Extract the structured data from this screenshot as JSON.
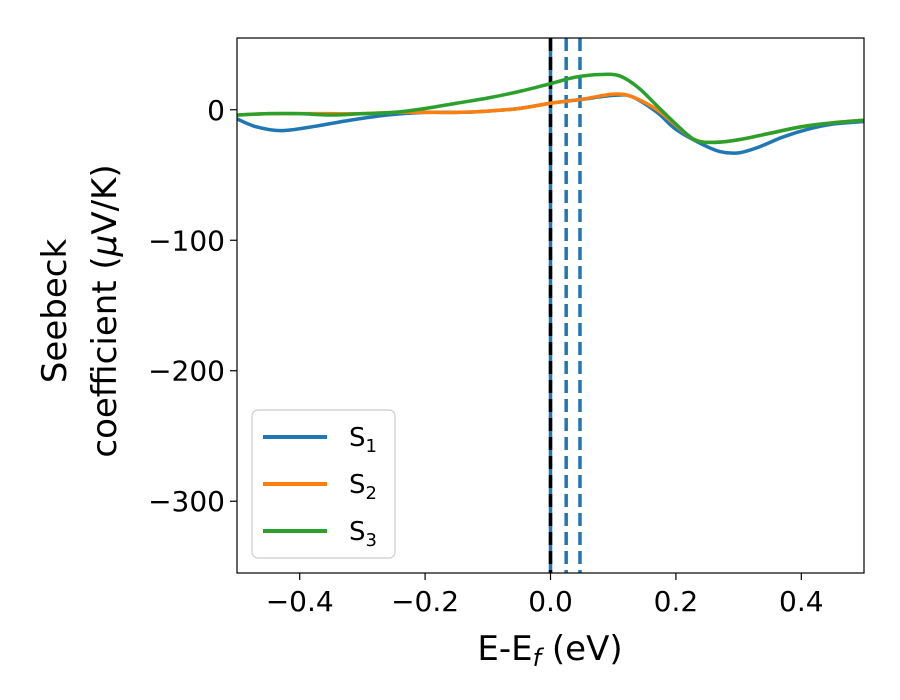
{
  "chart_data": {
    "type": "line",
    "xlabel": {
      "main": "E-E",
      "sub": "f",
      "unit": " (eV)"
    },
    "ylabel": {
      "line1": "Seebeck",
      "line2_main": "coefficient  (",
      "line2_mu": "μ",
      "line2_unit": "V/K)"
    },
    "xlim": [
      -0.5,
      0.5
    ],
    "ylim": [
      -355,
      55
    ],
    "xticks": [
      -0.4,
      -0.2,
      0.0,
      0.2,
      0.4
    ],
    "xtick_labels": [
      "−0.4",
      "−0.2",
      "0.0",
      "0.2",
      "0.4"
    ],
    "yticks": [
      0,
      -100,
      -200,
      -300
    ],
    "ytick_labels": [
      "0",
      "−100",
      "−200",
      "−300"
    ],
    "grid": false,
    "legend_position": "lower-left",
    "series": [
      {
        "name": "S1",
        "label_main": "S",
        "label_sub": "1",
        "color": "#1f77b4",
        "points": [
          [
            -0.5,
            -7
          ],
          [
            -0.47,
            -13
          ],
          [
            -0.43,
            -16
          ],
          [
            -0.38,
            -13
          ],
          [
            -0.32,
            -8
          ],
          [
            -0.26,
            -4
          ],
          [
            -0.2,
            -2
          ],
          [
            -0.15,
            -2
          ],
          [
            -0.1,
            -1
          ],
          [
            -0.05,
            1
          ],
          [
            0.0,
            5
          ],
          [
            0.05,
            8
          ],
          [
            0.1,
            11
          ],
          [
            0.13,
            10
          ],
          [
            0.17,
            -2
          ],
          [
            0.2,
            -15
          ],
          [
            0.24,
            -26
          ],
          [
            0.27,
            -32
          ],
          [
            0.3,
            -33
          ],
          [
            0.33,
            -29
          ],
          [
            0.37,
            -21
          ],
          [
            0.41,
            -15
          ],
          [
            0.45,
            -11
          ],
          [
            0.5,
            -9
          ]
        ]
      },
      {
        "name": "S2",
        "label_main": "S",
        "label_sub": "2",
        "color": "#ff7f0e",
        "points": [
          [
            -0.5,
            -4
          ],
          [
            -0.45,
            -3
          ],
          [
            -0.4,
            -3
          ],
          [
            -0.35,
            -3
          ],
          [
            -0.3,
            -3
          ],
          [
            -0.25,
            -2
          ],
          [
            -0.2,
            -2
          ],
          [
            -0.15,
            -2
          ],
          [
            -0.1,
            -1
          ],
          [
            -0.05,
            1
          ],
          [
            0.0,
            5
          ],
          [
            0.05,
            8
          ],
          [
            0.1,
            12
          ],
          [
            0.13,
            10
          ],
          [
            0.17,
            0
          ],
          [
            0.2,
            -12
          ],
          [
            0.23,
            -23
          ],
          [
            0.26,
            -25
          ],
          [
            0.3,
            -23
          ],
          [
            0.35,
            -18
          ],
          [
            0.4,
            -13
          ],
          [
            0.45,
            -10
          ],
          [
            0.5,
            -8
          ]
        ]
      },
      {
        "name": "S3",
        "label_main": "S",
        "label_sub": "3",
        "color": "#2ca02c",
        "points": [
          [
            -0.5,
            -4
          ],
          [
            -0.45,
            -3
          ],
          [
            -0.4,
            -3
          ],
          [
            -0.35,
            -4
          ],
          [
            -0.3,
            -3
          ],
          [
            -0.25,
            -2
          ],
          [
            -0.2,
            1
          ],
          [
            -0.15,
            5
          ],
          [
            -0.1,
            9
          ],
          [
            -0.05,
            14
          ],
          [
            0.0,
            20
          ],
          [
            0.04,
            25
          ],
          [
            0.08,
            27
          ],
          [
            0.11,
            26
          ],
          [
            0.14,
            17
          ],
          [
            0.17,
            3
          ],
          [
            0.2,
            -11
          ],
          [
            0.23,
            -23
          ],
          [
            0.26,
            -25
          ],
          [
            0.3,
            -23
          ],
          [
            0.35,
            -18
          ],
          [
            0.4,
            -13
          ],
          [
            0.45,
            -10
          ],
          [
            0.5,
            -8
          ]
        ]
      }
    ],
    "vertical_lines": [
      {
        "x": 0.0,
        "color": "#1f77b4",
        "style": "solid"
      },
      {
        "x": 0.0,
        "color": "#000000",
        "style": "dashed"
      },
      {
        "x": 0.025,
        "color": "#1f77b4",
        "style": "dashed"
      },
      {
        "x": 0.047,
        "color": "#1f77b4",
        "style": "dashed"
      }
    ]
  }
}
